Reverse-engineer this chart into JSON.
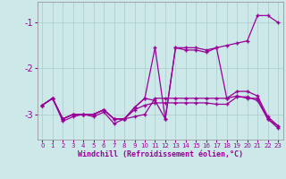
{
  "background_color": "#cce8e8",
  "grid_color": "#aacccc",
  "line_color": "#990099",
  "x": [
    0,
    1,
    2,
    3,
    4,
    5,
    6,
    7,
    8,
    9,
    10,
    11,
    12,
    13,
    14,
    15,
    16,
    17,
    18,
    19,
    20,
    21,
    22,
    23
  ],
  "series1": [
    -2.8,
    -2.65,
    -3.15,
    -3.05,
    -3.0,
    -3.05,
    -2.95,
    -3.2,
    -3.1,
    -3.05,
    -3.0,
    -2.65,
    -2.65,
    -2.65,
    -2.65,
    -2.65,
    -2.65,
    -2.65,
    -2.65,
    -2.5,
    -2.5,
    -2.6,
    -3.05,
    -3.25
  ],
  "series2": [
    -2.8,
    -2.65,
    -3.1,
    -3.0,
    -3.0,
    -3.0,
    -2.9,
    -3.1,
    -3.1,
    -2.9,
    -2.8,
    -2.75,
    -2.75,
    -2.75,
    -2.75,
    -2.75,
    -2.75,
    -2.78,
    -2.78,
    -2.62,
    -2.62,
    -2.7,
    -3.1,
    -3.3
  ],
  "series3": [
    -2.8,
    -2.65,
    -3.1,
    -3.0,
    -3.0,
    -3.0,
    -2.9,
    -3.1,
    -3.1,
    -2.85,
    -2.65,
    -1.55,
    -3.1,
    -1.55,
    -1.6,
    -1.6,
    -1.65,
    -1.55,
    -1.5,
    -1.45,
    -1.4,
    -0.85,
    -0.85,
    -1.0
  ],
  "series4": [
    -2.8,
    -2.65,
    -3.1,
    -3.0,
    -3.0,
    -3.0,
    -2.9,
    -3.1,
    -3.1,
    -2.85,
    -2.65,
    -2.7,
    -3.1,
    -1.55,
    -1.55,
    -1.55,
    -1.6,
    -1.55,
    -2.65,
    -2.6,
    -2.65,
    -2.65,
    -3.1,
    -3.25
  ],
  "ylim": [
    -3.55,
    -0.55
  ],
  "yticks": [
    -3,
    -2,
    -1
  ],
  "ytick_labels": [
    "-3",
    "-2",
    "-1"
  ],
  "xlim": [
    -0.5,
    23.5
  ],
  "xlabel": "Windchill (Refroidissement éolien,°C)",
  "xlabel_fontsize": 6.0,
  "ytick_fontsize": 7.0,
  "xtick_fontsize": 5.0
}
